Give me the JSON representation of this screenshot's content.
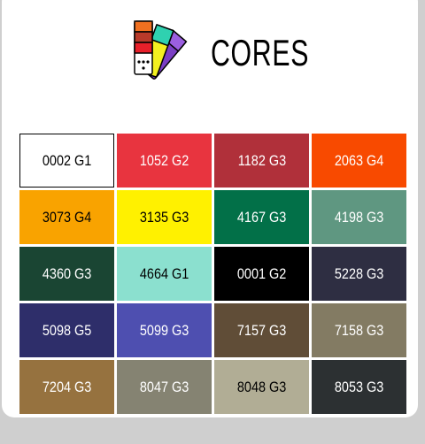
{
  "header": {
    "title": "CORES"
  },
  "swatches": [
    {
      "label": "0002 G1",
      "color": "#ffffff",
      "text_color": "#000000"
    },
    {
      "label": "1052 G2",
      "color": "#e8343f",
      "text_color": "#ffffff"
    },
    {
      "label": "1182 G3",
      "color": "#b0303a",
      "text_color": "#ffffff"
    },
    {
      "label": "2063 G4",
      "color": "#f84a00",
      "text_color": "#ffffff"
    },
    {
      "label": "3073 G4",
      "color": "#f9a300",
      "text_color": "#000000"
    },
    {
      "label": "3135 G3",
      "color": "#fff100",
      "text_color": "#000000"
    },
    {
      "label": "4167 G3",
      "color": "#027048",
      "text_color": "#ffffff"
    },
    {
      "label": "4198 G3",
      "color": "#5f9781",
      "text_color": "#ffffff"
    },
    {
      "label": "4360 G3",
      "color": "#1a4533",
      "text_color": "#ffffff"
    },
    {
      "label": "4664 G1",
      "color": "#8be0cf",
      "text_color": "#000000"
    },
    {
      "label": "0001 G2",
      "color": "#000000",
      "text_color": "#ffffff"
    },
    {
      "label": "5228 G3",
      "color": "#2e2e42",
      "text_color": "#ffffff"
    },
    {
      "label": "5098 G5",
      "color": "#2e2e6a",
      "text_color": "#ffffff"
    },
    {
      "label": "5099 G3",
      "color": "#4e4fb0",
      "text_color": "#ffffff"
    },
    {
      "label": "7157 G3",
      "color": "#604d37",
      "text_color": "#ffffff"
    },
    {
      "label": "7158 G3",
      "color": "#837b63",
      "text_color": "#ffffff"
    },
    {
      "label": "7204 G3",
      "color": "#96723f",
      "text_color": "#ffffff"
    },
    {
      "label": "8047 G3",
      "color": "#858372",
      "text_color": "#ffffff"
    },
    {
      "label": "8048 G3",
      "color": "#b1ad95",
      "text_color": "#000000"
    },
    {
      "label": "8053 G3",
      "color": "#2c3032",
      "text_color": "#ffffff"
    }
  ]
}
